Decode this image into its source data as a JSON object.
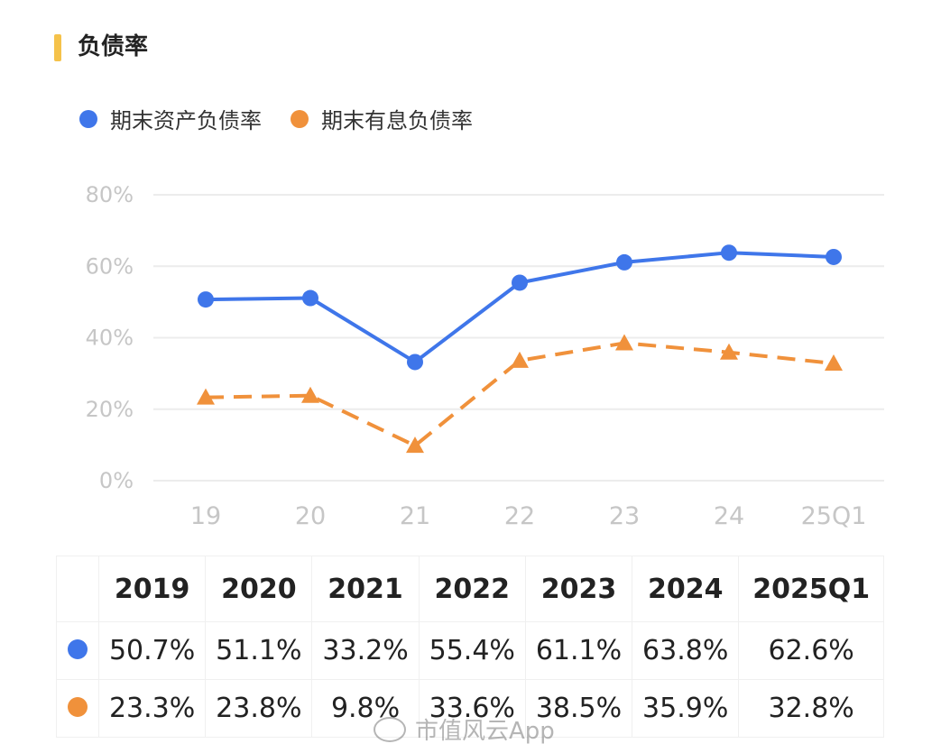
{
  "header": {
    "title": "负债率"
  },
  "colors": {
    "accent": "#f5c24a",
    "series1": "#3f76ea",
    "series2": "#f0913b"
  },
  "chart_data": {
    "type": "line",
    "categories": [
      "19",
      "20",
      "21",
      "22",
      "23",
      "24",
      "25Q1"
    ],
    "y_ticks": [
      "0%",
      "20%",
      "40%",
      "60%",
      "80%"
    ],
    "ylim": [
      0,
      80
    ],
    "grid": true,
    "legend_position": "top-left",
    "series": [
      {
        "name": "期末资产负债率",
        "values": [
          50.7,
          51.1,
          33.2,
          55.4,
          61.1,
          63.8,
          62.6
        ],
        "color": "#3f76ea",
        "marker": "circle",
        "line_style": "solid"
      },
      {
        "name": "期末有息负债率",
        "values": [
          23.3,
          23.8,
          9.8,
          33.6,
          38.5,
          35.9,
          32.8
        ],
        "color": "#f0913b",
        "marker": "triangle",
        "line_style": "dashed"
      }
    ]
  },
  "table": {
    "headers": [
      "2019",
      "2020",
      "2021",
      "2022",
      "2023",
      "2024",
      "2025Q1"
    ],
    "rows": [
      {
        "color": "#3f76ea",
        "cells": [
          "50.7%",
          "51.1%",
          "33.2%",
          "55.4%",
          "61.1%",
          "63.8%",
          "62.6%"
        ]
      },
      {
        "color": "#f0913b",
        "cells": [
          "23.3%",
          "23.8%",
          "9.8%",
          "33.6%",
          "38.5%",
          "35.9%",
          "32.8%"
        ]
      }
    ]
  },
  "watermark": {
    "text": "市值风云App",
    "icon": "weibo-icon"
  }
}
